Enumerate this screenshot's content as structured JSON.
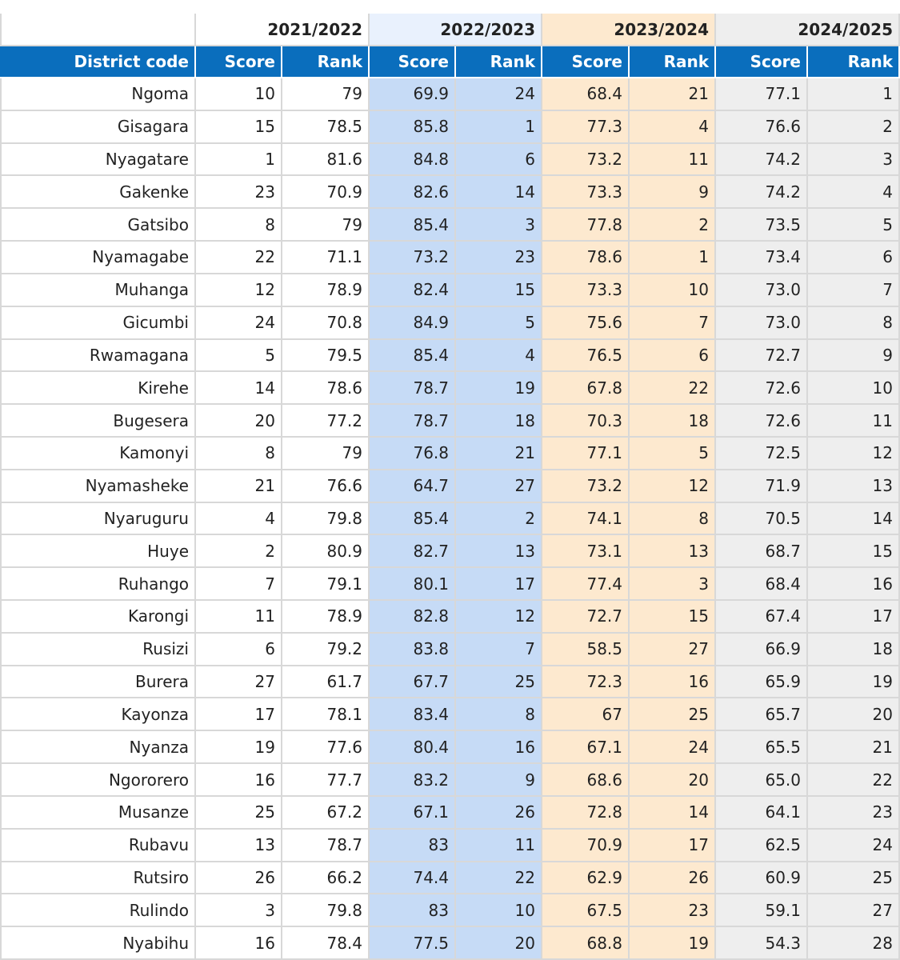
{
  "table": {
    "years": [
      "2021/2022",
      "2022/2023",
      "2023/2024",
      "2024/2025"
    ],
    "headers": [
      "District code",
      "Score",
      "Rank",
      "Score",
      "Rank",
      "Score",
      "Rank",
      "Score",
      "Rank"
    ],
    "rows": [
      [
        "Ngoma",
        "10",
        "79",
        "69.9",
        "24",
        "68.4",
        "21",
        "77.1",
        "1"
      ],
      [
        "Gisagara",
        "15",
        "78.5",
        "85.8",
        "1",
        "77.3",
        "4",
        "76.6",
        "2"
      ],
      [
        "Nyagatare",
        "1",
        "81.6",
        "84.8",
        "6",
        "73.2",
        "11",
        "74.2",
        "3"
      ],
      [
        "Gakenke",
        "23",
        "70.9",
        "82.6",
        "14",
        "73.3",
        "9",
        "74.2",
        "4"
      ],
      [
        "Gatsibo",
        "8",
        "79",
        "85.4",
        "3",
        "77.8",
        "2",
        "73.5",
        "5"
      ],
      [
        "Nyamagabe",
        "22",
        "71.1",
        "73.2",
        "23",
        "78.6",
        "1",
        "73.4",
        "6"
      ],
      [
        "Muhanga",
        "12",
        "78.9",
        "82.4",
        "15",
        "73.3",
        "10",
        "73.0",
        "7"
      ],
      [
        "Gicumbi",
        "24",
        "70.8",
        "84.9",
        "5",
        "75.6",
        "7",
        "73.0",
        "8"
      ],
      [
        "Rwamagana",
        "5",
        "79.5",
        "85.4",
        "4",
        "76.5",
        "6",
        "72.7",
        "9"
      ],
      [
        "Kirehe",
        "14",
        "78.6",
        "78.7",
        "19",
        "67.8",
        "22",
        "72.6",
        "10"
      ],
      [
        "Bugesera",
        "20",
        "77.2",
        "78.7",
        "18",
        "70.3",
        "18",
        "72.6",
        "11"
      ],
      [
        "Kamonyi",
        "8",
        "79",
        "76.8",
        "21",
        "77.1",
        "5",
        "72.5",
        "12"
      ],
      [
        "Nyamasheke",
        "21",
        "76.6",
        "64.7",
        "27",
        "73.2",
        "12",
        "71.9",
        "13"
      ],
      [
        "Nyaruguru",
        "4",
        "79.8",
        "85.4",
        "2",
        "74.1",
        "8",
        "70.5",
        "14"
      ],
      [
        "Huye",
        "2",
        "80.9",
        "82.7",
        "13",
        "73.1",
        "13",
        "68.7",
        "15"
      ],
      [
        "Ruhango",
        "7",
        "79.1",
        "80.1",
        "17",
        "77.4",
        "3",
        "68.4",
        "16"
      ],
      [
        "Karongi",
        "11",
        "78.9",
        "82.8",
        "12",
        "72.7",
        "15",
        "67.4",
        "17"
      ],
      [
        "Rusizi",
        "6",
        "79.2",
        "83.8",
        "7",
        "58.5",
        "27",
        "66.9",
        "18"
      ],
      [
        "Burera",
        "27",
        "61.7",
        "67.7",
        "25",
        "72.3",
        "16",
        "65.9",
        "19"
      ],
      [
        "Kayonza",
        "17",
        "78.1",
        "83.4",
        "8",
        "67",
        "25",
        "65.7",
        "20"
      ],
      [
        "Nyanza",
        "19",
        "77.6",
        "80.4",
        "16",
        "67.1",
        "24",
        "65.5",
        "21"
      ],
      [
        "Ngororero",
        "16",
        "77.7",
        "83.2",
        "9",
        "68.6",
        "20",
        "65.0",
        "22"
      ],
      [
        "Musanze",
        "25",
        "67.2",
        "67.1",
        "26",
        "72.8",
        "14",
        "64.1",
        "23"
      ],
      [
        "Rubavu",
        "13",
        "78.7",
        "83",
        "11",
        "70.9",
        "17",
        "62.5",
        "24"
      ],
      [
        "Rutsiro",
        "26",
        "66.2",
        "74.4",
        "22",
        "62.9",
        "26",
        "60.9",
        "25"
      ],
      [
        "Rulindo",
        "3",
        "79.8",
        "83",
        "10",
        "67.5",
        "23",
        "59.1",
        "27"
      ],
      [
        "Nyabihu",
        "16",
        "78.4",
        "77.5",
        "20",
        "68.8",
        "19",
        "54.3",
        "28"
      ]
    ]
  }
}
